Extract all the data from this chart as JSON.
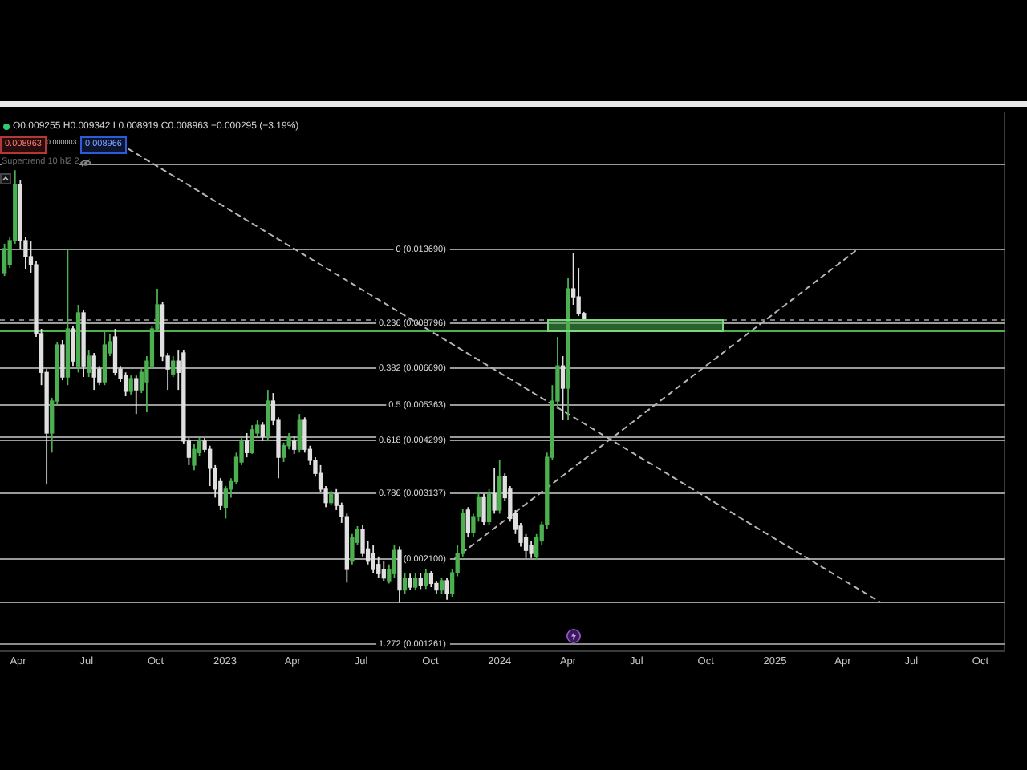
{
  "chart_data": {
    "type": "candlestick",
    "series": [
      {
        "x": [
          "2022-03-14",
          "2022-03-21",
          "2022-03-28",
          "2022-04-04",
          "2022-04-11",
          "2022-04-18",
          "2022-04-25",
          "2022-05-02",
          "2022-05-09",
          "2022-05-16",
          "2022-05-23",
          "2022-05-30",
          "2022-06-06",
          "2022-06-13",
          "2022-06-20",
          "2022-06-27",
          "2022-07-04",
          "2022-07-11",
          "2022-07-18",
          "2022-07-25",
          "2022-08-01",
          "2022-08-08",
          "2022-08-15",
          "2022-08-22",
          "2022-08-29",
          "2022-09-05",
          "2022-09-12",
          "2022-09-19",
          "2022-09-26",
          "2022-10-03",
          "2022-10-10",
          "2022-10-17",
          "2022-10-24",
          "2022-10-31",
          "2022-11-07",
          "2022-11-14",
          "2022-11-21",
          "2022-11-28",
          "2022-12-05",
          "2022-12-12",
          "2022-12-19",
          "2022-12-26",
          "2023-01-02",
          "2023-01-09",
          "2023-01-16",
          "2023-01-23",
          "2023-01-30",
          "2023-02-06",
          "2023-02-13",
          "2023-02-20",
          "2023-02-27",
          "2023-03-06",
          "2023-03-13",
          "2023-03-20",
          "2023-03-27",
          "2023-04-03",
          "2023-04-10",
          "2023-04-17",
          "2023-04-24",
          "2023-05-01",
          "2023-05-08",
          "2023-05-15",
          "2023-05-22",
          "2023-05-29",
          "2023-06-05",
          "2023-06-12",
          "2023-06-19",
          "2023-06-26",
          "2023-07-03",
          "2023-07-10",
          "2023-07-17",
          "2023-07-24",
          "2023-07-31",
          "2023-08-07",
          "2023-08-14",
          "2023-08-21",
          "2023-08-28",
          "2023-09-04",
          "2023-09-11",
          "2023-09-18",
          "2023-09-25",
          "2023-10-02",
          "2023-10-09",
          "2023-10-16",
          "2023-10-23",
          "2023-10-30",
          "2023-11-06",
          "2023-11-13",
          "2023-11-20",
          "2023-11-27",
          "2023-12-04",
          "2023-12-11",
          "2023-12-18",
          "2023-12-25",
          "2024-01-01",
          "2024-01-08",
          "2024-01-15",
          "2024-01-22",
          "2024-01-29",
          "2024-02-05",
          "2024-02-12",
          "2024-02-19",
          "2024-02-26",
          "2024-03-04",
          "2024-03-11",
          "2024-03-18",
          "2024-03-25",
          "2024-04-01",
          "2024-04-08",
          "2024-04-15",
          "2024-04-22"
        ],
        "ohlc": [
          [
            0.01184,
            0.0141,
            0.01161,
            0.01369
          ],
          [
            0.01242,
            0.01465,
            0.01218,
            0.01437
          ],
          [
            0.01437,
            0.022,
            0.0141,
            0.02018
          ],
          [
            0.02018,
            0.02078,
            0.01369,
            0.01437
          ],
          [
            0.01437,
            0.01465,
            0.01207,
            0.01304
          ],
          [
            0.01304,
            0.01437,
            0.01184,
            0.01242
          ],
          [
            0.01242,
            0.01267,
            0.00803,
            0.00819
          ],
          [
            0.00819,
            0.00843,
            0.006,
            0.00648
          ],
          [
            0.00648,
            0.00661,
            0.00329,
            0.00449
          ],
          [
            0.00449,
            0.00556,
            0.00399,
            0.00545
          ],
          [
            0.00545,
            0.0078,
            0.00534,
            0.00765
          ],
          [
            0.00765,
            0.00788,
            0.00618,
            0.0063
          ],
          [
            0.0063,
            0.01369,
            0.006,
            0.00843
          ],
          [
            0.00843,
            0.0086,
            0.00674,
            0.00694
          ],
          [
            0.00674,
            0.00975,
            0.00648,
            0.00929
          ],
          [
            0.00929,
            0.00947,
            0.0063,
            0.00674
          ],
          [
            0.00648,
            0.00743,
            0.0063,
            0.00715
          ],
          [
            0.00715,
            0.00729,
            0.00583,
            0.0063
          ],
          [
            0.00661,
            0.00674,
            0.006,
            0.00612
          ],
          [
            0.00612,
            0.00827,
            0.006,
            0.00765
          ],
          [
            0.00729,
            0.00819,
            0.00715,
            0.0078
          ],
          [
            0.00803,
            0.00843,
            0.00636,
            0.00648
          ],
          [
            0.00661,
            0.00674,
            0.00612,
            0.00624
          ],
          [
            0.00636,
            0.00648,
            0.00561,
            0.00578
          ],
          [
            0.00578,
            0.00636,
            0.00567,
            0.00624
          ],
          [
            0.00624,
            0.00636,
            0.00504,
            0.00583
          ],
          [
            0.00583,
            0.00661,
            0.00572,
            0.00648
          ],
          [
            0.00612,
            0.00715,
            0.00509,
            0.00694
          ],
          [
            0.00674,
            0.0086,
            0.00661,
            0.00843
          ],
          [
            0.00843,
            0.01074,
            0.00827,
            0.00975
          ],
          [
            0.00975,
            0.00994,
            0.00694,
            0.00715
          ],
          [
            0.00715,
            0.00729,
            0.00583,
            0.00661
          ],
          [
            0.00642,
            0.00715,
            0.0063,
            0.00694
          ],
          [
            0.00694,
            0.00743,
            0.00583,
            0.00648
          ],
          [
            0.00729,
            0.00743,
            0.0042,
            0.00428
          ],
          [
            0.00428,
            0.00436,
            0.0037,
            0.00388
          ],
          [
            0.0037,
            0.0042,
            0.00359,
            0.00407
          ],
          [
            0.00399,
            0.00436,
            0.00392,
            0.00428
          ],
          [
            0.00428,
            0.00436,
            0.00399,
            0.00407
          ],
          [
            0.00407,
            0.00416,
            0.00326,
            0.00363
          ],
          [
            0.00363,
            0.0037,
            0.00304,
            0.0032
          ],
          [
            0.00335,
            0.00342,
            0.00282,
            0.0029
          ],
          [
            0.00287,
            0.00326,
            0.00268,
            0.0032
          ],
          [
            0.0032,
            0.00342,
            0.00304,
            0.00335
          ],
          [
            0.00335,
            0.00399,
            0.00329,
            0.00388
          ],
          [
            0.00377,
            0.00436,
            0.0037,
            0.00428
          ],
          [
            0.00428,
            0.00449,
            0.00388,
            0.00399
          ],
          [
            0.00399,
            0.00471,
            0.00396,
            0.00458
          ],
          [
            0.00449,
            0.00485,
            0.0044,
            0.00471
          ],
          [
            0.00471,
            0.0048,
            0.00428,
            0.0044
          ],
          [
            0.0044,
            0.00583,
            0.00428,
            0.00545
          ],
          [
            0.00545,
            0.00572,
            0.00471,
            0.00485
          ],
          [
            0.00485,
            0.00494,
            0.00342,
            0.00388
          ],
          [
            0.00388,
            0.00424,
            0.00377,
            0.00416
          ],
          [
            0.00416,
            0.00449,
            0.00407,
            0.0044
          ],
          [
            0.00428,
            0.0044,
            0.00396,
            0.00407
          ],
          [
            0.00407,
            0.00504,
            0.00399,
            0.00485
          ],
          [
            0.00485,
            0.00494,
            0.00399,
            0.00407
          ],
          [
            0.00407,
            0.00416,
            0.0037,
            0.00381
          ],
          [
            0.00381,
            0.00388,
            0.00345,
            0.00352
          ],
          [
            0.00352,
            0.0037,
            0.00314,
            0.0032
          ],
          [
            0.0032,
            0.00326,
            0.00287,
            0.00295
          ],
          [
            0.00295,
            0.00317,
            0.0029,
            0.00311
          ],
          [
            0.00311,
            0.0032,
            0.00282,
            0.0029
          ],
          [
            0.0029,
            0.00295,
            0.00261,
            0.00271
          ],
          [
            0.00271,
            0.00276,
            0.00182,
            0.00197
          ],
          [
            0.00207,
            0.00244,
            0.00203,
            0.00239
          ],
          [
            0.00232,
            0.00256,
            0.00228,
            0.00251
          ],
          [
            0.00251,
            0.00258,
            0.00213,
            0.00217
          ],
          [
            0.00223,
            0.00234,
            0.00203,
            0.00207
          ],
          [
            0.00217,
            0.00228,
            0.00193,
            0.00197
          ],
          [
            0.00203,
            0.00213,
            0.00187,
            0.00192
          ],
          [
            0.00197,
            0.00207,
            0.00184,
            0.00187
          ],
          [
            0.00184,
            0.00203,
            0.00181,
            0.00197
          ],
          [
            0.00192,
            0.00228,
            0.00187,
            0.00221
          ],
          [
            0.00221,
            0.00226,
            0.00161,
            0.00174
          ],
          [
            0.00174,
            0.00193,
            0.0017,
            0.00187
          ],
          [
            0.00187,
            0.00192,
            0.00174,
            0.00177
          ],
          [
            0.00177,
            0.00193,
            0.00174,
            0.00187
          ],
          [
            0.00187,
            0.00193,
            0.00175,
            0.00179
          ],
          [
            0.00179,
            0.00197,
            0.00175,
            0.00192
          ],
          [
            0.00192,
            0.00195,
            0.00177,
            0.00181
          ],
          [
            0.00181,
            0.00184,
            0.0017,
            0.00174
          ],
          [
            0.00174,
            0.00187,
            0.0017,
            0.00184
          ],
          [
            0.00184,
            0.00187,
            0.00164,
            0.0017
          ],
          [
            0.0017,
            0.00197,
            0.00167,
            0.00193
          ],
          [
            0.00193,
            0.00228,
            0.00189,
            0.00217
          ],
          [
            0.00217,
            0.00284,
            0.00213,
            0.00276
          ],
          [
            0.00282,
            0.00287,
            0.00239,
            0.00246
          ],
          [
            0.00246,
            0.00276,
            0.00239,
            0.00271
          ],
          [
            0.00271,
            0.00314,
            0.00263,
            0.00304
          ],
          [
            0.00304,
            0.00311,
            0.00258,
            0.00263
          ],
          [
            0.00263,
            0.0032,
            0.00258,
            0.00311
          ],
          [
            0.00311,
            0.00363,
            0.00276,
            0.00282
          ],
          [
            0.00282,
            0.00381,
            0.00276,
            0.00345
          ],
          [
            0.00345,
            0.00352,
            0.00298,
            0.00304
          ],
          [
            0.0032,
            0.00326,
            0.00263,
            0.00268
          ],
          [
            0.00276,
            0.00282,
            0.00244,
            0.00251
          ],
          [
            0.00256,
            0.00261,
            0.00226,
            0.00232
          ],
          [
            0.00239,
            0.00244,
            0.00211,
            0.00221
          ],
          [
            0.00228,
            0.00234,
            0.00211,
            0.00217
          ],
          [
            0.00213,
            0.00244,
            0.00209,
            0.00239
          ],
          [
            0.00234,
            0.00263,
            0.00228,
            0.00258
          ],
          [
            0.00258,
            0.00399,
            0.00251,
            0.00388
          ],
          [
            0.00388,
            0.006,
            0.00381,
            0.00545
          ],
          [
            0.00545,
            0.00803,
            0.00519,
            0.00674
          ],
          [
            0.00674,
            0.00715,
            0.00485,
            0.00589
          ],
          [
            0.00589,
            0.0115,
            0.00485,
            0.01074
          ],
          [
            0.01074,
            0.0133,
            0.00975,
            0.01023
          ],
          [
            0.01023,
            0.01218,
            0.00911,
            0.00926
          ],
          [
            0.009255,
            0.009342,
            0.008919,
            0.008963
          ]
        ],
        "colors": [
          "#4caf50",
          "#4caf50",
          "#4caf50",
          "#e0e0e0",
          "#e0e0e0",
          "#e0e0e0",
          "#e0e0e0",
          "#e0e0e0",
          "#e0e0e0",
          "#4caf50",
          "#4caf50",
          "#e0e0e0",
          "#4caf50",
          "#e0e0e0",
          "#4caf50",
          "#e0e0e0",
          "#4caf50",
          "#e0e0e0",
          "#e0e0e0",
          "#4caf50",
          "#4caf50",
          "#e0e0e0",
          "#e0e0e0",
          "#e0e0e0",
          "#4caf50",
          "#e0e0e0",
          "#4caf50",
          "#4caf50",
          "#4caf50",
          "#4caf50",
          "#e0e0e0",
          "#e0e0e0",
          "#4caf50",
          "#e0e0e0",
          "#e0e0e0",
          "#e0e0e0",
          "#4caf50",
          "#4caf50",
          "#e0e0e0",
          "#e0e0e0",
          "#e0e0e0",
          "#e0e0e0",
          "#4caf50",
          "#4caf50",
          "#4caf50",
          "#4caf50",
          "#e0e0e0",
          "#4caf50",
          "#4caf50",
          "#e0e0e0",
          "#4caf50",
          "#e0e0e0",
          "#e0e0e0",
          "#4caf50",
          "#4caf50",
          "#e0e0e0",
          "#4caf50",
          "#e0e0e0",
          "#e0e0e0",
          "#e0e0e0",
          "#e0e0e0",
          "#e0e0e0",
          "#4caf50",
          "#e0e0e0",
          "#e0e0e0",
          "#e0e0e0",
          "#4caf50",
          "#4caf50",
          "#e0e0e0",
          "#e0e0e0",
          "#e0e0e0",
          "#e0e0e0",
          "#e0e0e0",
          "#4caf50",
          "#4caf50",
          "#e0e0e0",
          "#4caf50",
          "#e0e0e0",
          "#4caf50",
          "#e0e0e0",
          "#4caf50",
          "#e0e0e0",
          "#e0e0e0",
          "#4caf50",
          "#e0e0e0",
          "#4caf50",
          "#4caf50",
          "#4caf50",
          "#e0e0e0",
          "#4caf50",
          "#4caf50",
          "#e0e0e0",
          "#4caf50",
          "#e0e0e0",
          "#4caf50",
          "#e0e0e0",
          "#e0e0e0",
          "#e0e0e0",
          "#e0e0e0",
          "#e0e0e0",
          "#e0e0e0",
          "#4caf50",
          "#4caf50",
          "#4caf50",
          "#4caf50",
          "#4caf50",
          "#e0e0e0",
          "#4caf50",
          "#e0e0e0",
          "#e0e0e0",
          "#e0e0e0"
        ]
      },
      {
        "type": "line",
        "x": [
          "2022-08-26",
          "2025-05-20"
        ],
        "values": [
          0.025,
          0.00162
        ],
        "color": "#b5b5b5",
        "line_style": "dashed"
      },
      {
        "type": "line",
        "x": [
          "2023-11-02",
          "2025-04-22"
        ],
        "values": [
          0.0021,
          0.01369
        ],
        "color": "#b5b5b5",
        "line_style": "dashed"
      }
    ],
    "xlim": [
      "2022-03-08",
      "2025-11-02"
    ],
    "xticks": [
      {
        "value": "2022-04-01",
        "label": "Apr"
      },
      {
        "value": "2022-07-01",
        "label": "Jul"
      },
      {
        "value": "2022-10-01",
        "label": "Oct"
      },
      {
        "value": "2023-01-01",
        "label": "2023"
      },
      {
        "value": "2023-04-01",
        "label": "Apr"
      },
      {
        "value": "2023-07-01",
        "label": "Jul"
      },
      {
        "value": "2023-10-01",
        "label": "Oct"
      },
      {
        "value": "2024-01-01",
        "label": "2024"
      },
      {
        "value": "2024-04-01",
        "label": "Apr"
      },
      {
        "value": "2024-07-01",
        "label": "Jul"
      },
      {
        "value": "2024-10-01",
        "label": "Oct"
      },
      {
        "value": "2025-01-01",
        "label": "2025"
      },
      {
        "value": "2025-04-01",
        "label": "Apr"
      },
      {
        "value": "2025-07-01",
        "label": "Jul"
      },
      {
        "value": "2025-10-01",
        "label": "Oct"
      }
    ],
    "ylim": [
      0.0012,
      0.031
    ],
    "log": true,
    "tick_labels": "x",
    "ref_lines": [
      {
        "axis": "y",
        "value": 0.0229,
        "color": "#9a9a9a"
      },
      {
        "axis": "y",
        "value": 0.01369,
        "label": "0 (0.013690)",
        "color": "#9a9a9a"
      },
      {
        "axis": "y",
        "value": 0.008963,
        "color": "#7a7a7a",
        "line_style": "dashed"
      },
      {
        "axis": "y",
        "value": 0.008796,
        "label": "0.236 (0.008796)",
        "color": "#9a9a9a"
      },
      {
        "axis": "y",
        "value": 0.00835,
        "color": "#4caf50"
      },
      {
        "axis": "y",
        "value": 0.00669,
        "label": "0.382 (0.006690)",
        "color": "#9a9a9a"
      },
      {
        "axis": "y",
        "value": 0.005363,
        "label": "0.5 (0.005363)",
        "color": "#9a9a9a"
      },
      {
        "axis": "y",
        "value": 0.00442,
        "color": "#9a9a9a"
      },
      {
        "axis": "y",
        "value": 0.004299,
        "label": "0.618 (0.004299)",
        "color": "#9a9a9a"
      },
      {
        "axis": "y",
        "value": 0.003137,
        "label": "0.786 (0.003137)",
        "color": "#9a9a9a"
      },
      {
        "axis": "y",
        "value": 0.0021,
        "label": "(0.002100)",
        "color": "#9a9a9a"
      },
      {
        "axis": "y",
        "value": 0.00162,
        "color": "#9a9a9a"
      },
      {
        "axis": "y",
        "value": 0.001261,
        "label": "1.272 (0.001261)",
        "color": "#8c8c8c"
      }
    ],
    "annotations": [
      "O0.009255 H0.009342 L0.008919 C0.008963 −0.000295 (−3.19%)",
      "0.008963",
      "0.000003",
      "0.008966",
      "Supertrend 10 hl2 2"
    ]
  }
}
